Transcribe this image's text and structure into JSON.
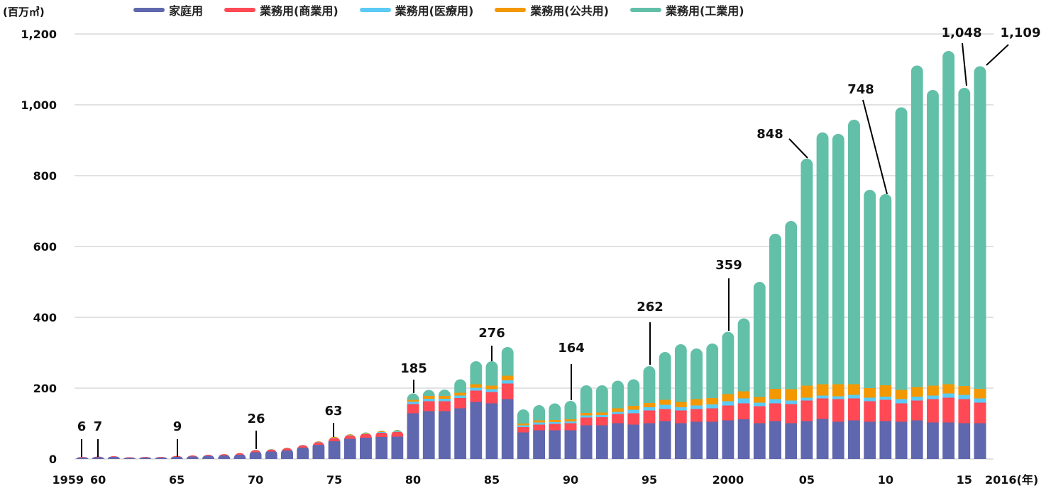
{
  "chart_data": {
    "type": "bar",
    "stacked": true,
    "ylabel": "(百万㎥)",
    "ylim": [
      0,
      1200
    ],
    "yticks": [
      0,
      200,
      400,
      600,
      800,
      1000,
      1200
    ],
    "ytick_labels": [
      "0",
      "200",
      "400",
      "600",
      "800",
      "1,000",
      "1,200"
    ],
    "grid": true,
    "legend_position": "top",
    "x": [
      1959,
      1960,
      1961,
      1962,
      1963,
      1964,
      1965,
      1966,
      1967,
      1968,
      1969,
      1970,
      1971,
      1972,
      1973,
      1974,
      1975,
      1976,
      1977,
      1978,
      1979,
      1980,
      1981,
      1982,
      1983,
      1984,
      1985,
      1986,
      1987,
      1988,
      1989,
      1990,
      1991,
      1992,
      1993,
      1994,
      1995,
      1996,
      1997,
      1998,
      1999,
      2000,
      2001,
      2002,
      2003,
      2004,
      2005,
      2006,
      2007,
      2008,
      2009,
      2010,
      2011,
      2012,
      2013,
      2014,
      2015,
      2016
    ],
    "xtick_labels": [
      {
        "year": 1959,
        "label": "1959"
      },
      {
        "year": 1960,
        "label": "60"
      },
      {
        "year": 1965,
        "label": "65"
      },
      {
        "year": 1970,
        "label": "70"
      },
      {
        "year": 1975,
        "label": "75"
      },
      {
        "year": 1980,
        "label": "80"
      },
      {
        "year": 1985,
        "label": "85"
      },
      {
        "year": 1990,
        "label": "90"
      },
      {
        "year": 1995,
        "label": "95"
      },
      {
        "year": 2000,
        "label": "2000"
      },
      {
        "year": 2005,
        "label": "05"
      },
      {
        "year": 2010,
        "label": "10"
      },
      {
        "year": 2015,
        "label": "15"
      },
      {
        "year": 2016,
        "label": "2016(年)"
      }
    ],
    "series": [
      {
        "name": "家庭用",
        "color": "#5F67AE",
        "values": [
          4,
          5,
          6,
          3,
          4,
          4,
          6,
          7,
          9,
          10,
          12,
          19,
          21,
          24,
          32,
          40,
          50,
          57,
          60,
          62,
          63,
          129,
          135,
          135,
          143,
          161,
          157,
          169,
          75,
          81,
          81,
          81,
          95,
          95,
          101,
          97,
          101,
          107,
          101,
          105,
          105,
          109,
          112,
          101,
          107,
          101,
          107,
          113,
          105,
          109,
          105,
          107,
          105,
          109,
          103,
          103,
          101,
          101
        ]
      },
      {
        "name": "業務用(商業用)",
        "color": "#FF4A55",
        "values": [
          2,
          2,
          2,
          2,
          2,
          2,
          3,
          3,
          3,
          3,
          4,
          5,
          5,
          6,
          6,
          7,
          9,
          9,
          10,
          12,
          13,
          26,
          28,
          28,
          29,
          32,
          32,
          44,
          15,
          16,
          18,
          20,
          22,
          23,
          26,
          32,
          36,
          34,
          36,
          36,
          38,
          42,
          45,
          48,
          50,
          54,
          58,
          58,
          64,
          62,
          58,
          60,
          52,
          56,
          66,
          70,
          68,
          58
        ]
      },
      {
        "name": "業務用(医療用)",
        "color": "#5BCBF5",
        "values": [
          0,
          0,
          0,
          0,
          0,
          0,
          0,
          0,
          0,
          0,
          0,
          1,
          1,
          1,
          1,
          1,
          1,
          1,
          1,
          2,
          2,
          7,
          7,
          7,
          7,
          8,
          8,
          9,
          5,
          6,
          5,
          5,
          6,
          6,
          6,
          10,
          9,
          12,
          9,
          10,
          11,
          12,
          14,
          10,
          12,
          10,
          8,
          8,
          8,
          10,
          10,
          9,
          12,
          11,
          10,
          12,
          12,
          12
        ]
      },
      {
        "name": "業務用(公共用)",
        "color": "#F39800",
        "values": [
          0,
          0,
          0,
          0,
          0,
          0,
          0,
          0,
          0,
          1,
          1,
          1,
          1,
          1,
          1,
          1,
          2,
          2,
          2,
          2,
          2,
          5,
          8,
          8,
          8,
          10,
          10,
          13,
          5,
          6,
          6,
          6,
          7,
          7,
          10,
          11,
          12,
          14,
          15,
          18,
          18,
          20,
          20,
          16,
          29,
          32,
          34,
          32,
          34,
          30,
          27,
          32,
          26,
          27,
          28,
          26,
          25,
          27
        ]
      },
      {
        "name": "業務用(工業用)",
        "color": "#62BFA8",
        "values": [
          0,
          0,
          0,
          0,
          0,
          0,
          0,
          0,
          0,
          0,
          0,
          0,
          0,
          0,
          0,
          1,
          1,
          1,
          2,
          2,
          2,
          18,
          17,
          18,
          38,
          65,
          69,
          81,
          40,
          43,
          47,
          52,
          78,
          77,
          78,
          75,
          104,
          135,
          163,
          143,
          154,
          176,
          206,
          325,
          438,
          475,
          641,
          711,
          707,
          747,
          560,
          540,
          798,
          908,
          835,
          941,
          842,
          911
        ]
      }
    ],
    "annotations": [
      {
        "year": 1959,
        "label": "6"
      },
      {
        "year": 1960,
        "label": "7"
      },
      {
        "year": 1965,
        "label": "9"
      },
      {
        "year": 1970,
        "label": "26"
      },
      {
        "year": 1975,
        "label": "63"
      },
      {
        "year": 1980,
        "label": "185"
      },
      {
        "year": 1985,
        "label": "276"
      },
      {
        "year": 1990,
        "label": "164"
      },
      {
        "year": 1995,
        "label": "262"
      },
      {
        "year": 2000,
        "label": "359"
      },
      {
        "year": 2005,
        "label": "848"
      },
      {
        "year": 2010,
        "label": "748"
      },
      {
        "year": 2015,
        "label": "1,048"
      },
      {
        "year": 2016,
        "label": "1,109"
      }
    ]
  }
}
